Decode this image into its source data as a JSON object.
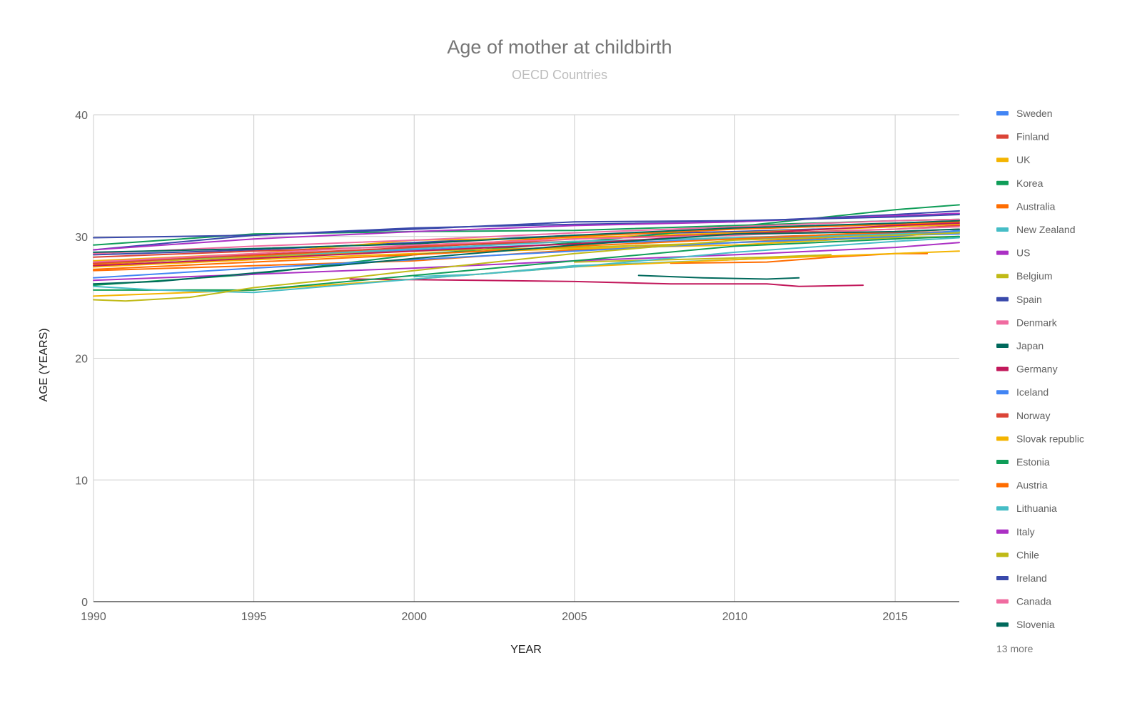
{
  "chart_data": {
    "type": "line",
    "title": "Age of mother at childbirth",
    "subtitle": "OECD Countries",
    "xlabel": "YEAR",
    "ylabel": "AGE (YEARS)",
    "xlim": [
      1990,
      2017
    ],
    "ylim": [
      0,
      40
    ],
    "x_ticks": [
      1990,
      1995,
      2000,
      2005,
      2010,
      2015
    ],
    "y_ticks": [
      0,
      10,
      20,
      30,
      40
    ],
    "grid": true,
    "legend_position": "right",
    "legend_more_label": "13 more",
    "series": [
      {
        "name": "Sweden",
        "color": "#4285f4",
        "points": [
          [
            1990,
            27.6
          ],
          [
            1995,
            28.2
          ],
          [
            2000,
            28.9
          ],
          [
            2005,
            29.4
          ],
          [
            2010,
            29.8
          ],
          [
            2015,
            30.1
          ],
          [
            2017,
            30.2
          ]
        ]
      },
      {
        "name": "Finland",
        "color": "#db4437",
        "points": [
          [
            1990,
            28.3
          ],
          [
            1995,
            28.8
          ],
          [
            2000,
            29.2
          ],
          [
            2005,
            29.6
          ],
          [
            2010,
            29.9
          ],
          [
            2015,
            30.3
          ],
          [
            2017,
            30.4
          ]
        ]
      },
      {
        "name": "UK",
        "color": "#f4b400",
        "points": [
          [
            1990,
            27.5
          ],
          [
            1995,
            28.1
          ],
          [
            2000,
            28.6
          ],
          [
            2005,
            29.0
          ],
          [
            2010,
            29.3
          ],
          [
            2015,
            30.0
          ],
          [
            2017,
            30.4
          ]
        ]
      },
      {
        "name": "Korea",
        "color": "#0f9d58",
        "points": [
          [
            1990,
            26.0
          ],
          [
            1995,
            26.9
          ],
          [
            2000,
            28.5
          ],
          [
            2005,
            29.5
          ],
          [
            2010,
            30.8
          ],
          [
            2015,
            32.2
          ],
          [
            2017,
            32.6
          ]
        ]
      },
      {
        "name": "Australia",
        "color": "#ff6d01",
        "points": [
          [
            1990,
            27.7
          ],
          [
            1995,
            28.4
          ],
          [
            2000,
            29.1
          ],
          [
            2005,
            30.0
          ],
          [
            2010,
            30.6
          ],
          [
            2015,
            31.0
          ],
          [
            2017,
            31.2
          ]
        ]
      },
      {
        "name": "New Zealand",
        "color": "#46bdc6",
        "points": [
          [
            1990,
            27.9
          ],
          [
            1995,
            28.3
          ],
          [
            2000,
            29.0
          ],
          [
            2005,
            29.6
          ],
          [
            2010,
            29.9
          ],
          [
            2015,
            30.2
          ],
          [
            2017,
            30.4
          ]
        ]
      },
      {
        "name": "US",
        "color": "#ab30c4",
        "points": [
          [
            1990,
            26.4
          ],
          [
            1995,
            26.9
          ],
          [
            2000,
            27.4
          ],
          [
            2005,
            28.0
          ],
          [
            2010,
            28.5
          ],
          [
            2015,
            29.1
          ],
          [
            2017,
            29.5
          ]
        ]
      },
      {
        "name": "Belgium",
        "color": "#c0ba17",
        "points": [
          [
            1990,
            27.8
          ],
          [
            1995,
            28.3
          ],
          [
            2000,
            28.8
          ],
          [
            2005,
            29.1
          ],
          [
            2010,
            29.5
          ],
          [
            2015,
            29.9
          ],
          [
            2017,
            30.0
          ]
        ]
      },
      {
        "name": "Spain",
        "color": "#3949ab",
        "points": [
          [
            1990,
            28.9
          ],
          [
            1995,
            30.1
          ],
          [
            2000,
            30.7
          ],
          [
            2005,
            31.0
          ],
          [
            2010,
            31.2
          ],
          [
            2015,
            31.8
          ],
          [
            2017,
            32.1
          ]
        ]
      },
      {
        "name": "Denmark",
        "color": "#f06ba0",
        "points": [
          [
            1990,
            28.6
          ],
          [
            1995,
            29.2
          ],
          [
            2000,
            29.7
          ],
          [
            2005,
            30.3
          ],
          [
            2010,
            30.8
          ],
          [
            2015,
            31.3
          ],
          [
            2017,
            31.4
          ]
        ]
      },
      {
        "name": "Japan",
        "color": "#00695c",
        "points": [
          [
            1990,
            28.7
          ],
          [
            1995,
            29.0
          ],
          [
            2000,
            29.4
          ],
          [
            2005,
            30.1
          ],
          [
            2010,
            30.7
          ],
          [
            2015,
            31.1
          ],
          [
            2017,
            31.3
          ]
        ]
      },
      {
        "name": "Germany",
        "color": "#c2185b",
        "points": [
          [
            1990,
            27.6
          ],
          [
            1995,
            28.2
          ],
          [
            2000,
            28.8
          ],
          [
            2005,
            29.4
          ],
          [
            2010,
            30.2
          ],
          [
            2015,
            30.9
          ],
          [
            2017,
            31.1
          ]
        ]
      },
      {
        "name": "Iceland",
        "color": "#4285f4",
        "points": [
          [
            1990,
            26.6
          ],
          [
            1995,
            27.4
          ],
          [
            2000,
            28.1
          ],
          [
            2005,
            28.8
          ],
          [
            2010,
            29.5
          ],
          [
            2015,
            30.0
          ],
          [
            2017,
            30.5
          ]
        ]
      },
      {
        "name": "Norway",
        "color": "#db4437",
        "points": [
          [
            1990,
            27.8
          ],
          [
            1995,
            28.5
          ],
          [
            2000,
            29.1
          ],
          [
            2005,
            29.8
          ],
          [
            2010,
            30.2
          ],
          [
            2015,
            30.6
          ],
          [
            2017,
            30.9
          ]
        ]
      },
      {
        "name": "Slovak republic",
        "color": "#f4b400",
        "points": [
          [
            1990,
            25.1
          ],
          [
            1995,
            25.6
          ],
          [
            2000,
            26.5
          ],
          [
            2005,
            27.5
          ],
          [
            2010,
            28.1
          ],
          [
            2015,
            28.6
          ],
          [
            2017,
            28.8
          ]
        ]
      },
      {
        "name": "Estonia",
        "color": "#0f9d58",
        "points": [
          [
            1990,
            25.6
          ],
          [
            1995,
            25.6
          ],
          [
            2000,
            26.8
          ],
          [
            2005,
            28.0
          ],
          [
            2010,
            29.2
          ],
          [
            2015,
            29.8
          ],
          [
            2017,
            30.0
          ]
        ]
      },
      {
        "name": "Austria",
        "color": "#ff6d01",
        "points": [
          [
            1990,
            27.3
          ],
          [
            1995,
            27.9
          ],
          [
            2000,
            28.5
          ],
          [
            2005,
            29.2
          ],
          [
            2010,
            29.8
          ],
          [
            2015,
            30.4
          ],
          [
            2017,
            30.6
          ]
        ]
      },
      {
        "name": "Lithuania",
        "color": "#46bdc6",
        "points": [
          [
            1990,
            25.9
          ],
          [
            1992,
            25.6
          ],
          [
            1995,
            25.4
          ],
          [
            2000,
            26.5
          ],
          [
            2005,
            27.5
          ],
          [
            2010,
            28.7
          ],
          [
            2015,
            29.6
          ],
          [
            2017,
            29.9
          ]
        ]
      },
      {
        "name": "Italy",
        "color": "#ab30c4",
        "points": [
          [
            1990,
            28.9
          ],
          [
            1995,
            29.8
          ],
          [
            2000,
            30.4
          ],
          [
            2005,
            30.9
          ],
          [
            2010,
            31.2
          ],
          [
            2015,
            31.7
          ],
          [
            2017,
            31.9
          ]
        ]
      },
      {
        "name": "Chile",
        "color": "#c0ba17",
        "points": [
          [
            1990,
            24.8
          ],
          [
            1991,
            24.7
          ],
          [
            1993,
            25.0
          ],
          [
            1995,
            25.8
          ],
          [
            1998,
            26.6
          ],
          [
            2000,
            27.2
          ],
          [
            2005,
            28.6
          ],
          [
            2010,
            29.7
          ],
          [
            2015,
            30.1
          ],
          [
            2017,
            30.3
          ]
        ]
      },
      {
        "name": "Ireland",
        "color": "#3949ab",
        "points": [
          [
            1990,
            29.9
          ],
          [
            1995,
            30.1
          ],
          [
            2000,
            30.6
          ],
          [
            2005,
            31.2
          ],
          [
            2010,
            31.3
          ],
          [
            2015,
            31.6
          ],
          [
            2017,
            31.8
          ]
        ]
      },
      {
        "name": "Canada",
        "color": "#f06ba0",
        "points": [
          [
            1990,
            27.9
          ],
          [
            1995,
            28.6
          ],
          [
            2000,
            29.3
          ],
          [
            2005,
            29.8
          ],
          [
            2010,
            30.1
          ],
          [
            2015,
            30.6
          ],
          [
            2017,
            30.8
          ]
        ]
      },
      {
        "name": "Slovenia",
        "color": "#00695c",
        "points": [
          [
            1990,
            26.1
          ],
          [
            1992,
            26.3
          ],
          [
            1995,
            27.0
          ],
          [
            2000,
            28.2
          ],
          [
            2005,
            29.3
          ],
          [
            2010,
            30.2
          ],
          [
            2015,
            30.4
          ],
          [
            2017,
            30.6
          ]
        ]
      }
    ],
    "extra_lines": [
      {
        "color": "#c2185b",
        "points": [
          [
            1998,
            26.5
          ],
          [
            2002,
            26.4
          ],
          [
            2005,
            26.3
          ],
          [
            2008,
            26.1
          ],
          [
            2011,
            26.1
          ],
          [
            2012,
            25.9
          ],
          [
            2014,
            26.0
          ]
        ]
      },
      {
        "color": "#00695c",
        "points": [
          [
            2007,
            26.8
          ],
          [
            2009,
            26.6
          ],
          [
            2011,
            26.5
          ],
          [
            2012,
            26.6
          ]
        ]
      },
      {
        "color": "#ff6d01",
        "points": [
          [
            2008,
            27.8
          ],
          [
            2011,
            27.9
          ],
          [
            2013,
            28.3
          ],
          [
            2015,
            28.6
          ],
          [
            2016,
            28.6
          ]
        ]
      },
      {
        "color": "#c0ba17",
        "points": [
          [
            2005,
            27.9
          ],
          [
            2008,
            28.1
          ],
          [
            2011,
            28.3
          ],
          [
            2013,
            28.5
          ]
        ]
      },
      {
        "color": "#46bdc6",
        "points": [
          [
            2000,
            26.7
          ],
          [
            2002,
            26.9
          ],
          [
            2005,
            27.6
          ],
          [
            2008,
            27.9
          ],
          [
            2011,
            28.2
          ]
        ]
      },
      {
        "color": "#ff6d01",
        "points": [
          [
            1990,
            27.2
          ],
          [
            1995,
            27.6
          ],
          [
            2000,
            28.0
          ],
          [
            2005,
            28.9
          ],
          [
            2010,
            29.5
          ],
          [
            2015,
            30.2
          ],
          [
            2017,
            30.4
          ]
        ]
      },
      {
        "color": "#3949ab",
        "points": [
          [
            1990,
            28.5
          ],
          [
            1995,
            28.9
          ],
          [
            2000,
            29.5
          ],
          [
            2005,
            30.1
          ],
          [
            2010,
            30.4
          ],
          [
            2015,
            30.8
          ],
          [
            2017,
            31.0
          ]
        ]
      },
      {
        "color": "#0f9d58",
        "points": [
          [
            1990,
            29.3
          ],
          [
            1995,
            30.2
          ],
          [
            2000,
            30.4
          ],
          [
            2005,
            30.5
          ],
          [
            2010,
            30.9
          ],
          [
            2015,
            31.3
          ],
          [
            2017,
            31.4
          ]
        ]
      },
      {
        "color": "#f4b400",
        "points": [
          [
            1990,
            28.0
          ],
          [
            1995,
            28.6
          ],
          [
            2000,
            29.7
          ],
          [
            2005,
            29.9
          ],
          [
            2010,
            30.3
          ],
          [
            2015,
            30.8
          ],
          [
            2017,
            31.0
          ]
        ]
      }
    ]
  }
}
